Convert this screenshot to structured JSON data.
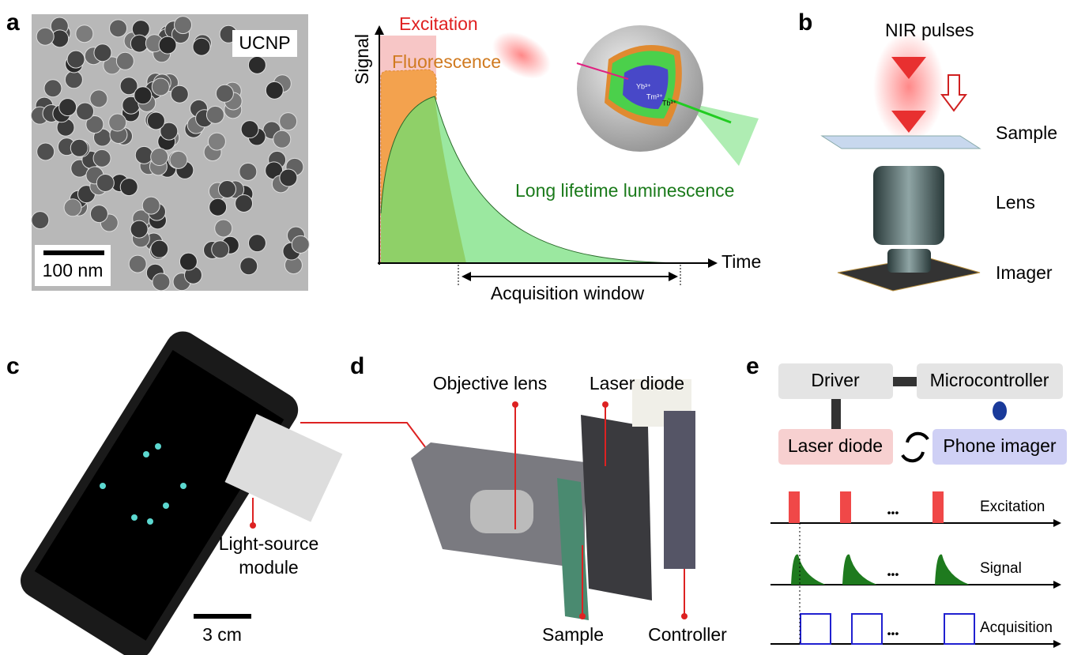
{
  "panel_a": {
    "label": "a",
    "image_label": "UCNP",
    "scale_bar": "100 nm",
    "plot": {
      "excitation": "Excitation",
      "fluorescence": "Fluorescence",
      "y_label": "Signal",
      "luminescence": "Long lifetime luminescence",
      "x_label": "Time",
      "window": "Acquisition window",
      "ions": [
        "Yb³⁺",
        "Tm³⁺",
        "Tb³⁺"
      ]
    }
  },
  "panel_b": {
    "label": "b",
    "title": "NIR pulses",
    "parts": [
      "Sample",
      "Lens",
      "Imager"
    ]
  },
  "panel_c": {
    "label": "c",
    "module": [
      "Light-source",
      "module"
    ],
    "scale_bar": "3 cm"
  },
  "panel_d": {
    "label": "d",
    "callouts": [
      "Objective lens",
      "Laser diode",
      "Sample",
      "Controller"
    ]
  },
  "panel_e": {
    "label": "e",
    "blocks": [
      "Driver",
      "Microcontroller",
      "Laser diode",
      "Phone imager"
    ],
    "traces": [
      "Excitation",
      "Signal",
      "Acquisition"
    ],
    "ellipsis": "•••"
  }
}
